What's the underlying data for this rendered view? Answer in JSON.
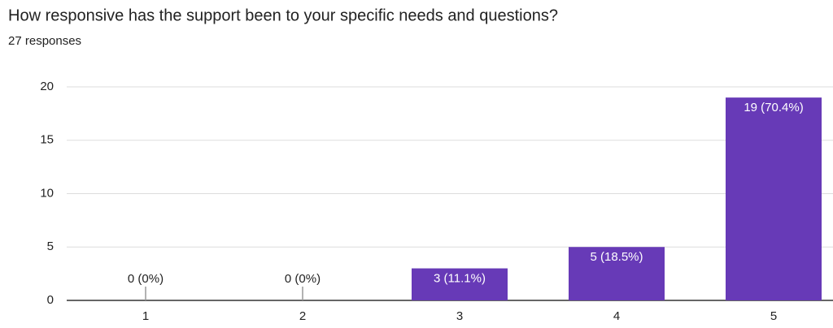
{
  "chart_data": {
    "type": "bar",
    "title": "How responsive has the support been to your specific needs and questions?",
    "subtitle": "27 responses",
    "categories": [
      "1",
      "2",
      "3",
      "4",
      "5"
    ],
    "values": [
      0,
      0,
      3,
      5,
      19
    ],
    "value_labels": [
      "0 (0%)",
      "0 (0%)",
      "3 (11.1%)",
      "5 (18.5%)",
      "19 (70.4%)"
    ],
    "color": "#673ab7",
    "ylim": [
      0,
      20
    ],
    "yticks": [
      0,
      5,
      10,
      15,
      20
    ],
    "grid": true
  }
}
